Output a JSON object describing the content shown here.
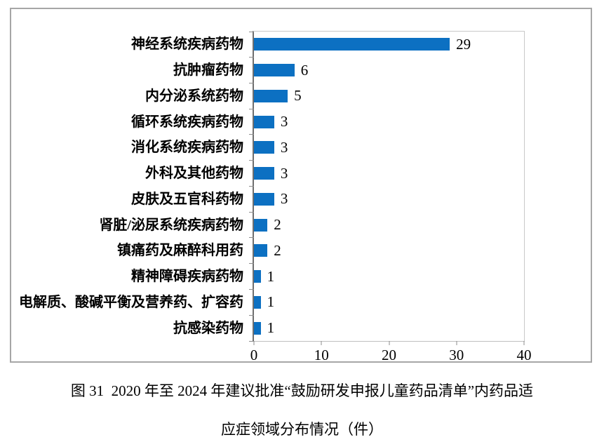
{
  "chart_data": {
    "type": "bar",
    "orientation": "horizontal",
    "title": "",
    "xlabel": "",
    "ylabel": "",
    "categories": [
      "神经系统疾病药物",
      "抗肿瘤药物",
      "内分泌系统药物",
      "循环系统疾病药物",
      "消化系统疾病药物",
      "外科及其他药物",
      "皮肤及五官科药物",
      "肾脏/泌尿系统疾病药物",
      "镇痛药及麻醉科用药",
      "精神障碍疾病药物",
      "电解质、酸碱平衡及营养药、扩容药",
      "抗感染药物"
    ],
    "values": [
      29,
      6,
      5,
      3,
      3,
      3,
      3,
      2,
      2,
      1,
      1,
      1
    ],
    "xlim": [
      0,
      40
    ],
    "x_ticks": [
      0,
      10,
      20,
      30,
      40
    ],
    "grid": false,
    "legend": false,
    "data_labels": true,
    "bar_color": "#0C70C2"
  },
  "colors": {
    "bar": "#0C70C2",
    "frame_border": "#A6A6A6",
    "plot_border": "#C9C9C9",
    "axis_line": "#6E6E6E",
    "text": "#000000",
    "background": "#FFFFFF"
  },
  "caption": {
    "line1": "图 31  2020 年至 2024 年建议批准“鼓励研发申报儿童药品清单”内药品适",
    "line2": "应症领域分布情况（件）"
  }
}
